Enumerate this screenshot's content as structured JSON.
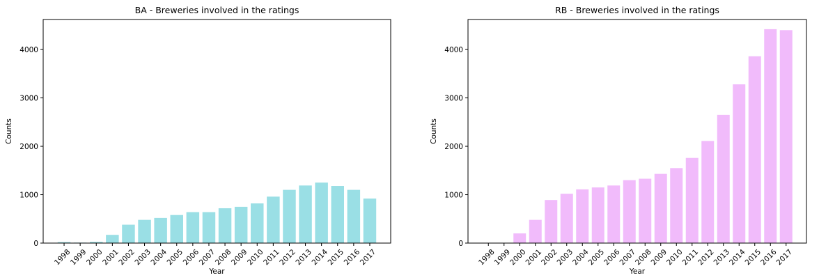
{
  "chart_data": [
    {
      "type": "bar",
      "title": "BA - Breweries involved in the ratings",
      "xlabel": "Year",
      "ylabel": "Counts",
      "categories": [
        "1998",
        "1999",
        "2000",
        "2001",
        "2002",
        "2003",
        "2004",
        "2005",
        "2006",
        "2007",
        "2008",
        "2009",
        "2010",
        "2011",
        "2012",
        "2013",
        "2014",
        "2015",
        "2016",
        "2017"
      ],
      "values": [
        20,
        10,
        25,
        170,
        380,
        480,
        520,
        580,
        640,
        640,
        720,
        750,
        820,
        960,
        1100,
        1190,
        1250,
        1180,
        1100,
        920
      ],
      "ylim": [
        0,
        4620
      ],
      "yticks": [
        0,
        1000,
        2000,
        3000,
        4000
      ],
      "color": "#9adfe5",
      "grid": false
    },
    {
      "type": "bar",
      "title": "RB - Breweries involved in the ratings",
      "xlabel": "Year",
      "ylabel": "Counts",
      "categories": [
        "1998",
        "1999",
        "2000",
        "2001",
        "2002",
        "2003",
        "2004",
        "2005",
        "2006",
        "2007",
        "2008",
        "2009",
        "2010",
        "2011",
        "2012",
        "2013",
        "2014",
        "2015",
        "2016",
        "2017"
      ],
      "values": [
        0,
        0,
        200,
        480,
        890,
        1020,
        1110,
        1150,
        1190,
        1300,
        1330,
        1430,
        1550,
        1760,
        2110,
        2650,
        3280,
        3860,
        4420,
        4400
      ],
      "ylim": [
        0,
        4620
      ],
      "yticks": [
        0,
        1000,
        2000,
        3000,
        4000
      ],
      "color": "#f1bbfb",
      "grid": false
    }
  ]
}
